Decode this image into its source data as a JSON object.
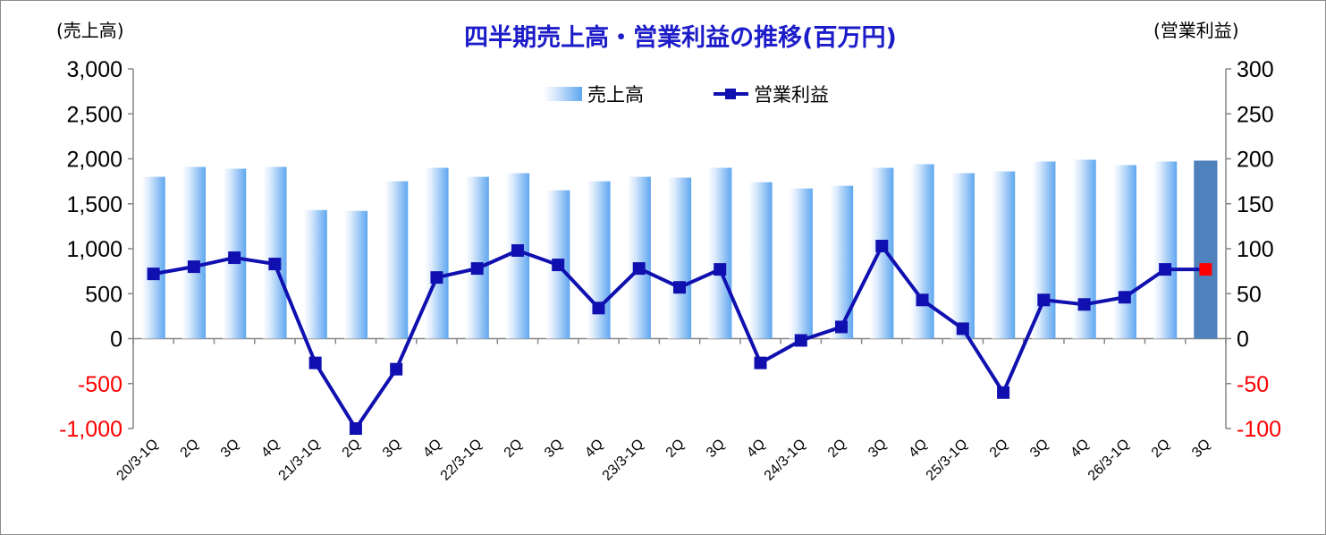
{
  "chart_data": {
    "type": "bar+line",
    "title": "四半期売上高・営業利益の推移(百万円)",
    "left_axis_label": "(売上高)",
    "right_axis_label": "(営業利益)",
    "categories": [
      "20/3-1Q",
      "2Q",
      "3Q",
      "4Q",
      "21/3-1Q",
      "2Q",
      "3Q",
      "4Q",
      "22/3-1Q",
      "2Q",
      "3Q",
      "4Q",
      "23/3-1Q",
      "2Q",
      "3Q",
      "4Q",
      "24/3-1Q",
      "2Q",
      "3Q",
      "4Q",
      "25/3-1Q",
      "2Q",
      "3Q",
      "4Q",
      "26/3-1Q",
      "2Q",
      "3Q"
    ],
    "y_left": {
      "range": [
        -1000,
        3000
      ],
      "ticks": [
        3000,
        2500,
        2000,
        1500,
        1000,
        500,
        0,
        -500,
        -1000
      ],
      "tick_labels": [
        "3,000",
        "2,500",
        "2,000",
        "1,500",
        "1,000",
        "500",
        "0",
        "-500",
        "-1,000"
      ]
    },
    "y_right": {
      "range": [
        -100,
        300
      ],
      "ticks": [
        300,
        250,
        200,
        150,
        100,
        50,
        0,
        -50,
        -100
      ],
      "tick_labels": [
        "300",
        "250",
        "200",
        "150",
        "100",
        "50",
        "0",
        "-50",
        "-100"
      ]
    },
    "negative_tick_color": "#ff0000",
    "series": [
      {
        "name": "売上高",
        "type": "bar",
        "axis": "left",
        "color": "#6fb0f2",
        "highlight_color": "#4f81bd",
        "highlight_index": 26,
        "values": [
          1800,
          1910,
          1890,
          1910,
          1430,
          1420,
          1750,
          1900,
          1800,
          1840,
          1650,
          1750,
          1800,
          1790,
          1900,
          1740,
          1670,
          1700,
          1900,
          1940,
          1840,
          1860,
          1970,
          1990,
          1930,
          1970,
          1980
        ]
      },
      {
        "name": "営業利益",
        "type": "line",
        "axis": "right",
        "color": "#1010b0",
        "marker_color": "#1010b0",
        "last_marker_color": "#ff0000",
        "values": [
          72,
          80,
          90,
          83,
          -27,
          -100,
          -34,
          68,
          78,
          98,
          82,
          34,
          78,
          57,
          77,
          -27,
          -2,
          13,
          103,
          43,
          11,
          -60,
          43,
          38,
          46,
          77,
          77
        ]
      }
    ],
    "legend": {
      "position": "top-center"
    }
  }
}
